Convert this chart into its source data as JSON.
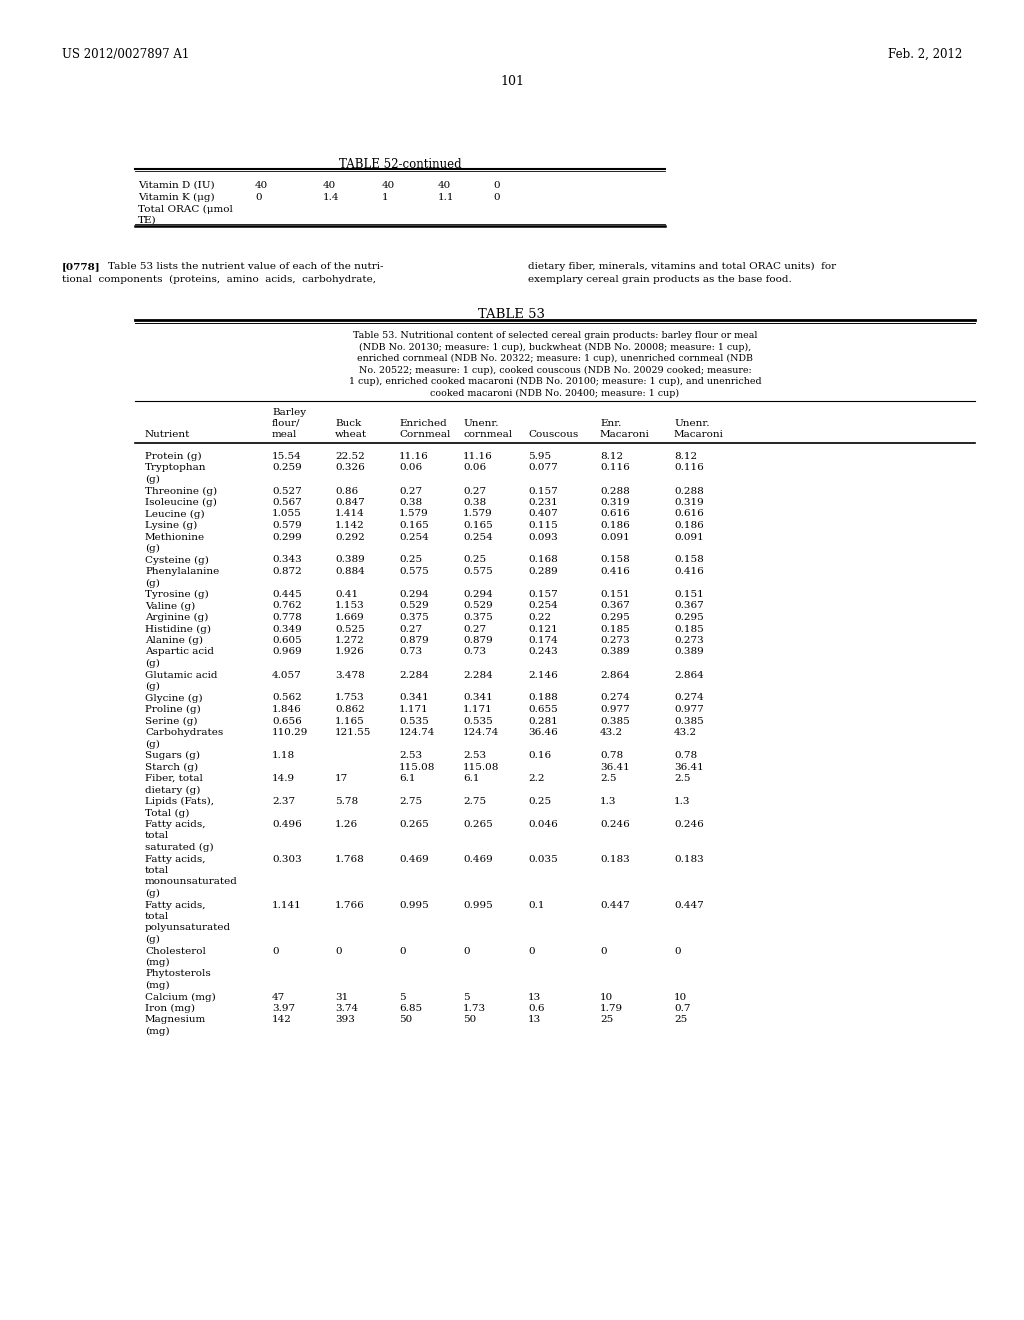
{
  "header_left": "US 2012/0027897 A1",
  "header_right": "Feb. 2, 2012",
  "page_number": "101",
  "table52_title": "TABLE 52-continued",
  "table53_title": "TABLE 53",
  "table53_caption": "Table 53. Nutritional content of selected cereal grain products: barley flour or meal\n(NDB No. 20130; measure: 1 cup), buckwheat (NDB No. 20008; measure: 1 cup),\nenriched cornmeal (NDB No. 20322; measure: 1 cup), unenriched cornmeal (NDB\nNo. 20522; measure: 1 cup), cooked couscous (NDB No. 20029 cooked; measure:\n1 cup), enriched cooked macaroni (NDB No. 20100; measure: 1 cup), and unenriched\ncooked macaroni (NDB No. 20400; measure: 1 cup)",
  "paragraph_ref": "[0778]",
  "paragraph_col1_line1": "Table 53 lists the nutrient value of each of the nutri-",
  "paragraph_col1_line2": "tional  components  (proteins,  amino  acids,  carbohydrate,",
  "paragraph_col2_line1": "dietary fiber, minerals, vitamins and total ORAC units)  for",
  "paragraph_col2_line2": "exemplary cereal grain products as the base food.",
  "col_headers": [
    "Nutrient",
    "Barley\nflour/\nmeal",
    "Buck\nwheat",
    "Enriched\nCornmeal",
    "Unenr.\ncornmeal",
    "Couscous",
    "Enr.\nMacaroni",
    "Unenr.\nMacaroni"
  ],
  "rows": [
    [
      "Protein (g)",
      "15.54",
      "22.52",
      "11.16",
      "11.16",
      "5.95",
      "8.12",
      "8.12"
    ],
    [
      "Tryptophan\n(g)",
      "0.259",
      "0.326",
      "0.06",
      "0.06",
      "0.077",
      "0.116",
      "0.116"
    ],
    [
      "Threonine (g)",
      "0.527",
      "0.86",
      "0.27",
      "0.27",
      "0.157",
      "0.288",
      "0.288"
    ],
    [
      "Isoleucine (g)",
      "0.567",
      "0.847",
      "0.38",
      "0.38",
      "0.231",
      "0.319",
      "0.319"
    ],
    [
      "Leucine (g)",
      "1.055",
      "1.414",
      "1.579",
      "1.579",
      "0.407",
      "0.616",
      "0.616"
    ],
    [
      "Lysine (g)",
      "0.579",
      "1.142",
      "0.165",
      "0.165",
      "0.115",
      "0.186",
      "0.186"
    ],
    [
      "Methionine\n(g)",
      "0.299",
      "0.292",
      "0.254",
      "0.254",
      "0.093",
      "0.091",
      "0.091"
    ],
    [
      "Cysteine (g)",
      "0.343",
      "0.389",
      "0.25",
      "0.25",
      "0.168",
      "0.158",
      "0.158"
    ],
    [
      "Phenylalanine\n(g)",
      "0.872",
      "0.884",
      "0.575",
      "0.575",
      "0.289",
      "0.416",
      "0.416"
    ],
    [
      "Tyrosine (g)",
      "0.445",
      "0.41",
      "0.294",
      "0.294",
      "0.157",
      "0.151",
      "0.151"
    ],
    [
      "Valine (g)",
      "0.762",
      "1.153",
      "0.529",
      "0.529",
      "0.254",
      "0.367",
      "0.367"
    ],
    [
      "Arginine (g)",
      "0.778",
      "1.669",
      "0.375",
      "0.375",
      "0.22",
      "0.295",
      "0.295"
    ],
    [
      "Histidine (g)",
      "0.349",
      "0.525",
      "0.27",
      "0.27",
      "0.121",
      "0.185",
      "0.185"
    ],
    [
      "Alanine (g)",
      "0.605",
      "1.272",
      "0.879",
      "0.879",
      "0.174",
      "0.273",
      "0.273"
    ],
    [
      "Aspartic acid\n(g)",
      "0.969",
      "1.926",
      "0.73",
      "0.73",
      "0.243",
      "0.389",
      "0.389"
    ],
    [
      "Glutamic acid\n(g)",
      "4.057",
      "3.478",
      "2.284",
      "2.284",
      "2.146",
      "2.864",
      "2.864"
    ],
    [
      "Glycine (g)",
      "0.562",
      "1.753",
      "0.341",
      "0.341",
      "0.188",
      "0.274",
      "0.274"
    ],
    [
      "Proline (g)",
      "1.846",
      "0.862",
      "1.171",
      "1.171",
      "0.655",
      "0.977",
      "0.977"
    ],
    [
      "Serine (g)",
      "0.656",
      "1.165",
      "0.535",
      "0.535",
      "0.281",
      "0.385",
      "0.385"
    ],
    [
      "Carbohydrates\n(g)",
      "110.29",
      "121.55",
      "124.74",
      "124.74",
      "36.46",
      "43.2",
      "43.2"
    ],
    [
      "Sugars (g)",
      "1.18",
      "",
      "2.53",
      "2.53",
      "0.16",
      "0.78",
      "0.78"
    ],
    [
      "Starch (g)",
      "",
      "",
      "115.08",
      "115.08",
      "",
      "36.41",
      "36.41"
    ],
    [
      "Fiber, total\ndietary (g)",
      "14.9",
      "17",
      "6.1",
      "6.1",
      "2.2",
      "2.5",
      "2.5"
    ],
    [
      "Lipids (Fats),\nTotal (g)",
      "2.37",
      "5.78",
      "2.75",
      "2.75",
      "0.25",
      "1.3",
      "1.3"
    ],
    [
      "Fatty acids,\ntotal\nsaturated (g)",
      "0.496",
      "1.26",
      "0.265",
      "0.265",
      "0.046",
      "0.246",
      "0.246"
    ],
    [
      "Fatty acids,\ntotal\nmonounsaturated\n(g)",
      "0.303",
      "1.768",
      "0.469",
      "0.469",
      "0.035",
      "0.183",
      "0.183"
    ],
    [
      "Fatty acids,\ntotal\npolyunsaturated\n(g)",
      "1.141",
      "1.766",
      "0.995",
      "0.995",
      "0.1",
      "0.447",
      "0.447"
    ],
    [
      "Cholesterol\n(mg)",
      "0",
      "0",
      "0",
      "0",
      "0",
      "0",
      "0"
    ],
    [
      "Phytosterols\n(mg)",
      "",
      "",
      "",
      "",
      "",
      "",
      ""
    ],
    [
      "Calcium (mg)",
      "47",
      "31",
      "5",
      "5",
      "13",
      "10",
      "10"
    ],
    [
      "Iron (mg)",
      "3.97",
      "3.74",
      "6.85",
      "1.73",
      "0.6",
      "1.79",
      "0.7"
    ],
    [
      "Magnesium\n(mg)",
      "142",
      "393",
      "50",
      "50",
      "13",
      "25",
      "25"
    ]
  ],
  "bg_color": "#ffffff",
  "text_color": "#000000"
}
